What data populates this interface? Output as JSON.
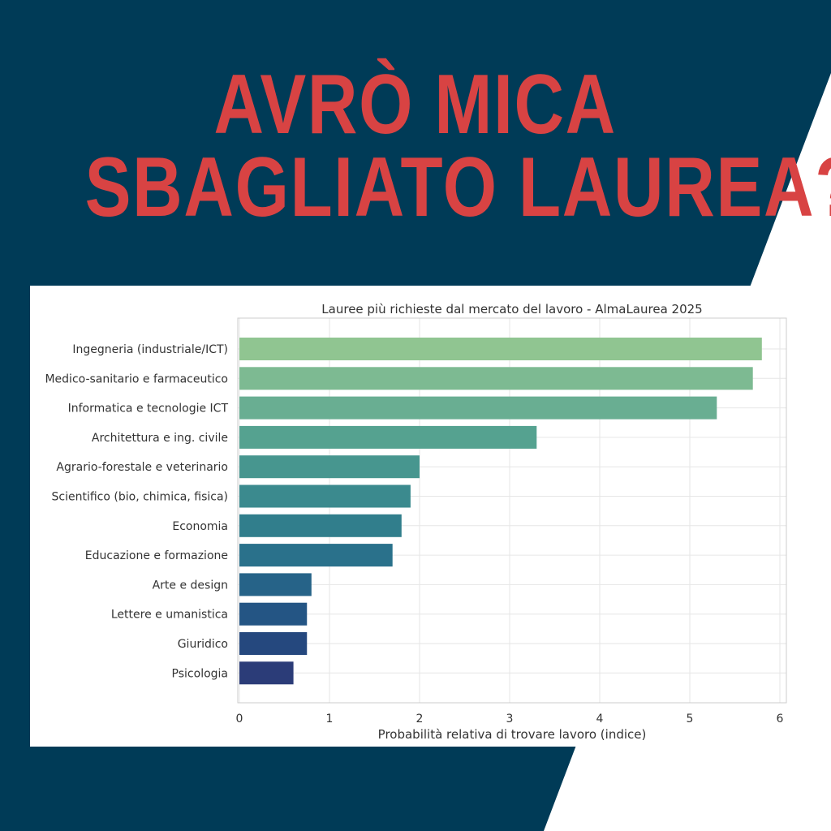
{
  "headline": {
    "line1": "AVRÒ MICA",
    "line2": "SBAGLIATO LAUREA?"
  },
  "colors": {
    "navy_background": "#003b57",
    "headline_red": "#d84343",
    "card_white": "#ffffff",
    "grid": "#e6e6e6",
    "axes_border": "#cccccc"
  },
  "chart_data": {
    "type": "bar",
    "orientation": "horizontal",
    "title": "Lauree più richieste dal mercato del lavoro - AlmaLaurea 2025",
    "xlabel": "Probabilità relativa di trovare lavoro (indice)",
    "ylabel": "",
    "xlim": [
      0,
      6.1
    ],
    "xticks": [
      0,
      1,
      2,
      3,
      4,
      5,
      6
    ],
    "grid": true,
    "categories": [
      "Ingegneria (industriale/ICT)",
      "Medico-sanitario e farmaceutico",
      "Informatica e tecnologie ICT",
      "Architettura e ing. civile",
      "Agrario-forestale e veterinario",
      "Scientifico (bio, chimica, fisica)",
      "Economia",
      "Educazione e formazione",
      "Arte e design",
      "Lettere e umanistica",
      "Giuridico",
      "Psicologia"
    ],
    "values": [
      5.8,
      5.7,
      5.3,
      3.3,
      2.0,
      1.9,
      1.8,
      1.7,
      0.8,
      0.75,
      0.75,
      0.6
    ],
    "bar_colors": [
      "#90c591",
      "#7dba92",
      "#69ae92",
      "#55a290",
      "#47968f",
      "#3b8a8e",
      "#317e8c",
      "#2a718b",
      "#266388",
      "#245584",
      "#25487e",
      "#2b3c78"
    ]
  }
}
